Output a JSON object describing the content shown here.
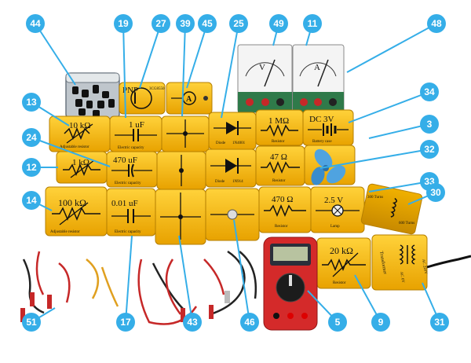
{
  "callouts": [
    "44",
    "19",
    "27",
    "39",
    "45",
    "25",
    "49",
    "11",
    "48",
    "13",
    "34",
    "3",
    "24",
    "32",
    "12",
    "33",
    "14",
    "30",
    "51",
    "17",
    "43",
    "46",
    "5",
    "9",
    "31"
  ],
  "modules": {
    "pnp": "PNP",
    "pnp_part": "3CG8550",
    "res10k": "10 kΩ",
    "res10k_caption": "Adjustable resistor",
    "cap1uf": "1 uF",
    "cap1uf_caption": "Electric capacity",
    "diode1": "Diode",
    "diode1_part": "1N4001",
    "res1m": "1 MΩ",
    "res1m_caption": "Resistor",
    "battery": "DC 3V",
    "battery_caption": "Battery case",
    "res1k": "1 kΩ",
    "cap470": "470 uF",
    "cap470_caption": "Electric capacity",
    "diode2": "Diode",
    "diode2_part": "1N914",
    "res47": "47 Ω",
    "res47_caption": "Resistor",
    "res100k": "100 kΩ",
    "res100k_caption": "Adjustable resistor",
    "cap001": "0.01 uF",
    "cap001_caption": "Electric capacity",
    "res470": "470 Ω",
    "res470_caption": "Resistor",
    "lamp": "2.5 V",
    "lamp_caption": "Lamp",
    "turns300": "300 Turns",
    "turns600": "600 Turns",
    "res20k": "20 kΩ",
    "res20k_caption": "Resistor",
    "transformer": "Transformer",
    "transformer_ac": "AC 6V",
    "transformer_in": "AC 220V"
  },
  "meters": {
    "voltmeter": "V",
    "ammeter": "A"
  },
  "colors": {
    "module_yellow": "#f5b400",
    "callout_blue": "#35aee8",
    "multimeter_red": "#d42a2a",
    "meter_green": "#2f7a4a"
  }
}
